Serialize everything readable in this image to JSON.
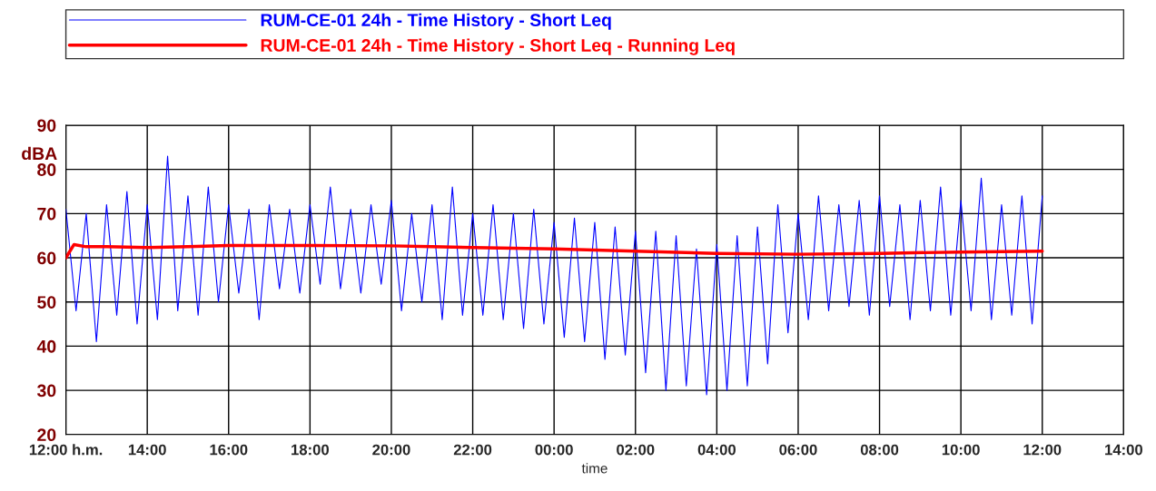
{
  "chart_data": {
    "type": "line",
    "xlabel": "time",
    "ylabel": "dBA",
    "xlim": [
      "2000-01-01T12:00",
      "2000-01-02T14:00"
    ],
    "ylim": [
      20,
      90
    ],
    "xticks": [
      {
        "value": "2000-01-01T12:00",
        "label": "12:00 h.m."
      },
      {
        "value": "2000-01-01T14:00",
        "label": "14:00"
      },
      {
        "value": "2000-01-01T16:00",
        "label": "16:00"
      },
      {
        "value": "2000-01-01T18:00",
        "label": "18:00"
      },
      {
        "value": "2000-01-01T20:00",
        "label": "20:00"
      },
      {
        "value": "2000-01-01T22:00",
        "label": "22:00"
      },
      {
        "value": "2000-01-02T00:00",
        "label": "00:00"
      },
      {
        "value": "2000-01-02T02:00",
        "label": "02:00"
      },
      {
        "value": "2000-01-02T04:00",
        "label": "04:00"
      },
      {
        "value": "2000-01-02T06:00",
        "label": "06:00"
      },
      {
        "value": "2000-01-02T08:00",
        "label": "08:00"
      },
      {
        "value": "2000-01-02T10:00",
        "label": "10:00"
      },
      {
        "value": "2000-01-02T12:00",
        "label": "12:00"
      },
      {
        "value": "2000-01-02T14:00",
        "label": "14:00"
      }
    ],
    "yticks": [
      20,
      30,
      40,
      50,
      60,
      70,
      80,
      90
    ],
    "grid": true,
    "legend": "top",
    "line_style": "solid",
    "marker": "none",
    "series": [
      {
        "name": "RUM-CE-01 24h - Time History - Short Leq",
        "color": "#0000ff",
        "x": [
          "2000-01-01T12:00",
          "2000-01-01T12:15",
          "2000-01-01T12:30",
          "2000-01-01T12:45",
          "2000-01-01T13:00",
          "2000-01-01T13:15",
          "2000-01-01T13:30",
          "2000-01-01T13:45",
          "2000-01-01T14:00",
          "2000-01-01T14:15",
          "2000-01-01T14:30",
          "2000-01-01T14:45",
          "2000-01-01T15:00",
          "2000-01-01T15:15",
          "2000-01-01T15:30",
          "2000-01-01T15:45",
          "2000-01-01T16:00",
          "2000-01-01T16:15",
          "2000-01-01T16:30",
          "2000-01-01T16:45",
          "2000-01-01T17:00",
          "2000-01-01T17:15",
          "2000-01-01T17:30",
          "2000-01-01T17:45",
          "2000-01-01T18:00",
          "2000-01-01T18:15",
          "2000-01-01T18:30",
          "2000-01-01T18:45",
          "2000-01-01T19:00",
          "2000-01-01T19:15",
          "2000-01-01T19:30",
          "2000-01-01T19:45",
          "2000-01-01T20:00",
          "2000-01-01T20:15",
          "2000-01-01T20:30",
          "2000-01-01T20:45",
          "2000-01-01T21:00",
          "2000-01-01T21:15",
          "2000-01-01T21:30",
          "2000-01-01T21:45",
          "2000-01-01T22:00",
          "2000-01-01T22:15",
          "2000-01-01T22:30",
          "2000-01-01T22:45",
          "2000-01-01T23:00",
          "2000-01-01T23:15",
          "2000-01-01T23:30",
          "2000-01-01T23:45",
          "2000-01-02T00:00",
          "2000-01-02T00:15",
          "2000-01-02T00:30",
          "2000-01-02T00:45",
          "2000-01-02T01:00",
          "2000-01-02T01:15",
          "2000-01-02T01:30",
          "2000-01-02T01:45",
          "2000-01-02T02:00",
          "2000-01-02T02:15",
          "2000-01-02T02:30",
          "2000-01-02T02:45",
          "2000-01-02T03:00",
          "2000-01-02T03:15",
          "2000-01-02T03:30",
          "2000-01-02T03:45",
          "2000-01-02T04:00",
          "2000-01-02T04:15",
          "2000-01-02T04:30",
          "2000-01-02T04:45",
          "2000-01-02T05:00",
          "2000-01-02T05:15",
          "2000-01-02T05:30",
          "2000-01-02T05:45",
          "2000-01-02T06:00",
          "2000-01-02T06:15",
          "2000-01-02T06:30",
          "2000-01-02T06:45",
          "2000-01-02T07:00",
          "2000-01-02T07:15",
          "2000-01-02T07:30",
          "2000-01-02T07:45",
          "2000-01-02T08:00",
          "2000-01-02T08:15",
          "2000-01-02T08:30",
          "2000-01-02T08:45",
          "2000-01-02T09:00",
          "2000-01-02T09:15",
          "2000-01-02T09:30",
          "2000-01-02T09:45",
          "2000-01-02T10:00",
          "2000-01-02T10:15",
          "2000-01-02T10:30",
          "2000-01-02T10:45",
          "2000-01-02T11:00",
          "2000-01-02T11:15",
          "2000-01-02T11:30",
          "2000-01-02T11:45",
          "2000-01-02T12:00"
        ],
        "values": [
          71,
          48,
          70,
          41,
          72,
          47,
          75,
          45,
          72,
          46,
          83,
          48,
          74,
          47,
          76,
          50,
          72,
          52,
          71,
          46,
          72,
          53,
          71,
          52,
          72,
          54,
          76,
          53,
          71,
          52,
          72,
          54,
          73,
          48,
          70,
          50,
          72,
          46,
          76,
          47,
          70,
          47,
          72,
          46,
          70,
          44,
          71,
          45,
          68,
          42,
          69,
          41,
          68,
          37,
          67,
          38,
          66,
          34,
          66,
          30,
          65,
          31,
          62,
          29,
          63,
          30,
          65,
          31,
          67,
          36,
          72,
          43,
          70,
          46,
          74,
          48,
          72,
          49,
          73,
          47,
          74,
          49,
          72,
          46,
          73,
          48,
          76,
          47,
          73,
          48,
          78,
          46,
          72,
          47,
          74,
          45,
          74
        ]
      },
      {
        "name": "RUM-CE-01 24h - Time History - Short Leq - Running Leq",
        "color": "#ff0000",
        "x": [
          "2000-01-01T12:00",
          "2000-01-01T12:12",
          "2000-01-01T12:30",
          "2000-01-01T13:00",
          "2000-01-01T14:00",
          "2000-01-01T15:00",
          "2000-01-01T16:00",
          "2000-01-01T18:00",
          "2000-01-01T20:00",
          "2000-01-01T21:00",
          "2000-01-01T22:00",
          "2000-01-02T00:00",
          "2000-01-02T02:00",
          "2000-01-02T04:00",
          "2000-01-02T06:00",
          "2000-01-02T08:00",
          "2000-01-02T10:00",
          "2000-01-02T12:00"
        ],
        "values": [
          60,
          63,
          62.5,
          62.5,
          62.3,
          62.5,
          62.8,
          62.8,
          62.7,
          62.5,
          62.3,
          62,
          61.5,
          61,
          60.8,
          61,
          61.3,
          61.5
        ]
      }
    ]
  }
}
